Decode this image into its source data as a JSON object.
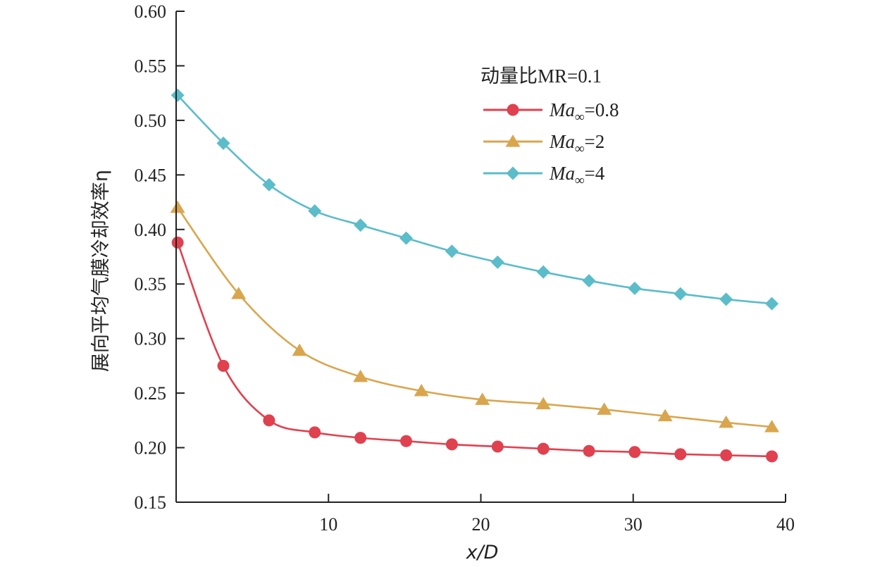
{
  "chart_data": {
    "type": "line",
    "xlabel": "x/D",
    "ylabel": "展向平均气膜冷却效率η",
    "xlim": [
      0,
      40
    ],
    "ylim": [
      0.15,
      0.6
    ],
    "xticks": [
      10,
      20,
      30,
      40
    ],
    "yticks": [
      0.15,
      0.2,
      0.25,
      0.3,
      0.35,
      0.4,
      0.45,
      0.5,
      0.55,
      0.6
    ],
    "ytick_labels": [
      "0.15",
      "0.20",
      "0.25",
      "0.30",
      "0.35",
      "0.40",
      "0.45",
      "0.50",
      "0.55",
      "0.60"
    ],
    "grid": false,
    "legend": {
      "title": "动量比MR=0.1",
      "placement": "top-right"
    },
    "series": [
      {
        "name": "Ma∞=0.8",
        "label_main": "Ma",
        "label_sub": "∞",
        "label_value": "=0.8",
        "marker": "circle",
        "color": "#e0414f",
        "x": [
          0.1,
          3.1,
          6.1,
          9.1,
          12.1,
          15.1,
          18.1,
          21.1,
          24.1,
          27.1,
          30.1,
          33.1,
          36.1,
          39.1
        ],
        "y": [
          0.388,
          0.275,
          0.225,
          0.214,
          0.209,
          0.206,
          0.203,
          0.201,
          0.199,
          0.197,
          0.196,
          0.194,
          0.193,
          0.192
        ]
      },
      {
        "name": "Ma∞=2",
        "label_main": "Ma",
        "label_sub": "∞",
        "label_value": "=2",
        "marker": "triangle",
        "color": "#d9a64e",
        "x": [
          0.1,
          4.1,
          8.1,
          12.1,
          16.1,
          20.1,
          24.1,
          28.1,
          32.1,
          36.1,
          39.1
        ],
        "y": [
          0.42,
          0.341,
          0.289,
          0.265,
          0.252,
          0.244,
          0.24,
          0.235,
          0.229,
          0.223,
          0.219
        ]
      },
      {
        "name": "Ma∞=4",
        "label_main": "Ma",
        "label_sub": "∞",
        "label_value": "=4",
        "marker": "diamond",
        "color": "#5bbcca",
        "x": [
          0.1,
          3.1,
          6.1,
          9.1,
          12.1,
          15.1,
          18.1,
          21.1,
          24.1,
          27.1,
          30.1,
          33.1,
          36.1,
          39.1
        ],
        "y": [
          0.523,
          0.479,
          0.441,
          0.417,
          0.404,
          0.392,
          0.38,
          0.37,
          0.361,
          0.353,
          0.346,
          0.341,
          0.336,
          0.332
        ]
      }
    ]
  }
}
